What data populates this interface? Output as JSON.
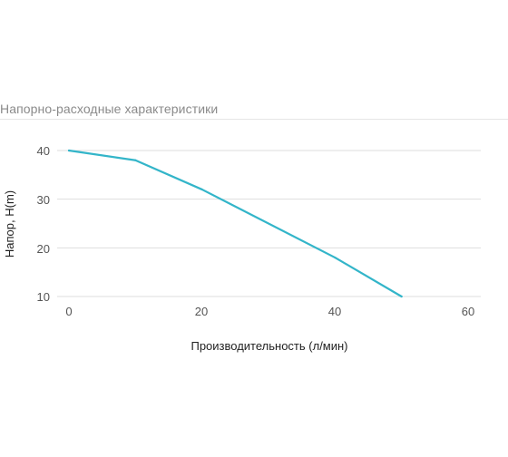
{
  "panel": {
    "title": "Напорно-расходные характеристики"
  },
  "chart_data": {
    "type": "line",
    "title": "",
    "xlabel": "Производительность (л/мин)",
    "ylabel": "Напор, H(m)",
    "xlim": [
      0,
      60
    ],
    "ylim": [
      10,
      40
    ],
    "x_ticks": [
      "0",
      "20",
      "40",
      "60"
    ],
    "y_ticks": [
      "40",
      "30",
      "20",
      "10"
    ],
    "grid": "horizontal",
    "series": [
      {
        "color": "#33b5c9",
        "points": [
          {
            "x": 0,
            "y": 40
          },
          {
            "x": 10,
            "y": 38
          },
          {
            "x": 20,
            "y": 32
          },
          {
            "x": 40,
            "y": 18
          },
          {
            "x": 50,
            "y": 10
          }
        ]
      }
    ],
    "colors": {
      "line": "#33b5c9",
      "grid": "#dddddd"
    }
  }
}
